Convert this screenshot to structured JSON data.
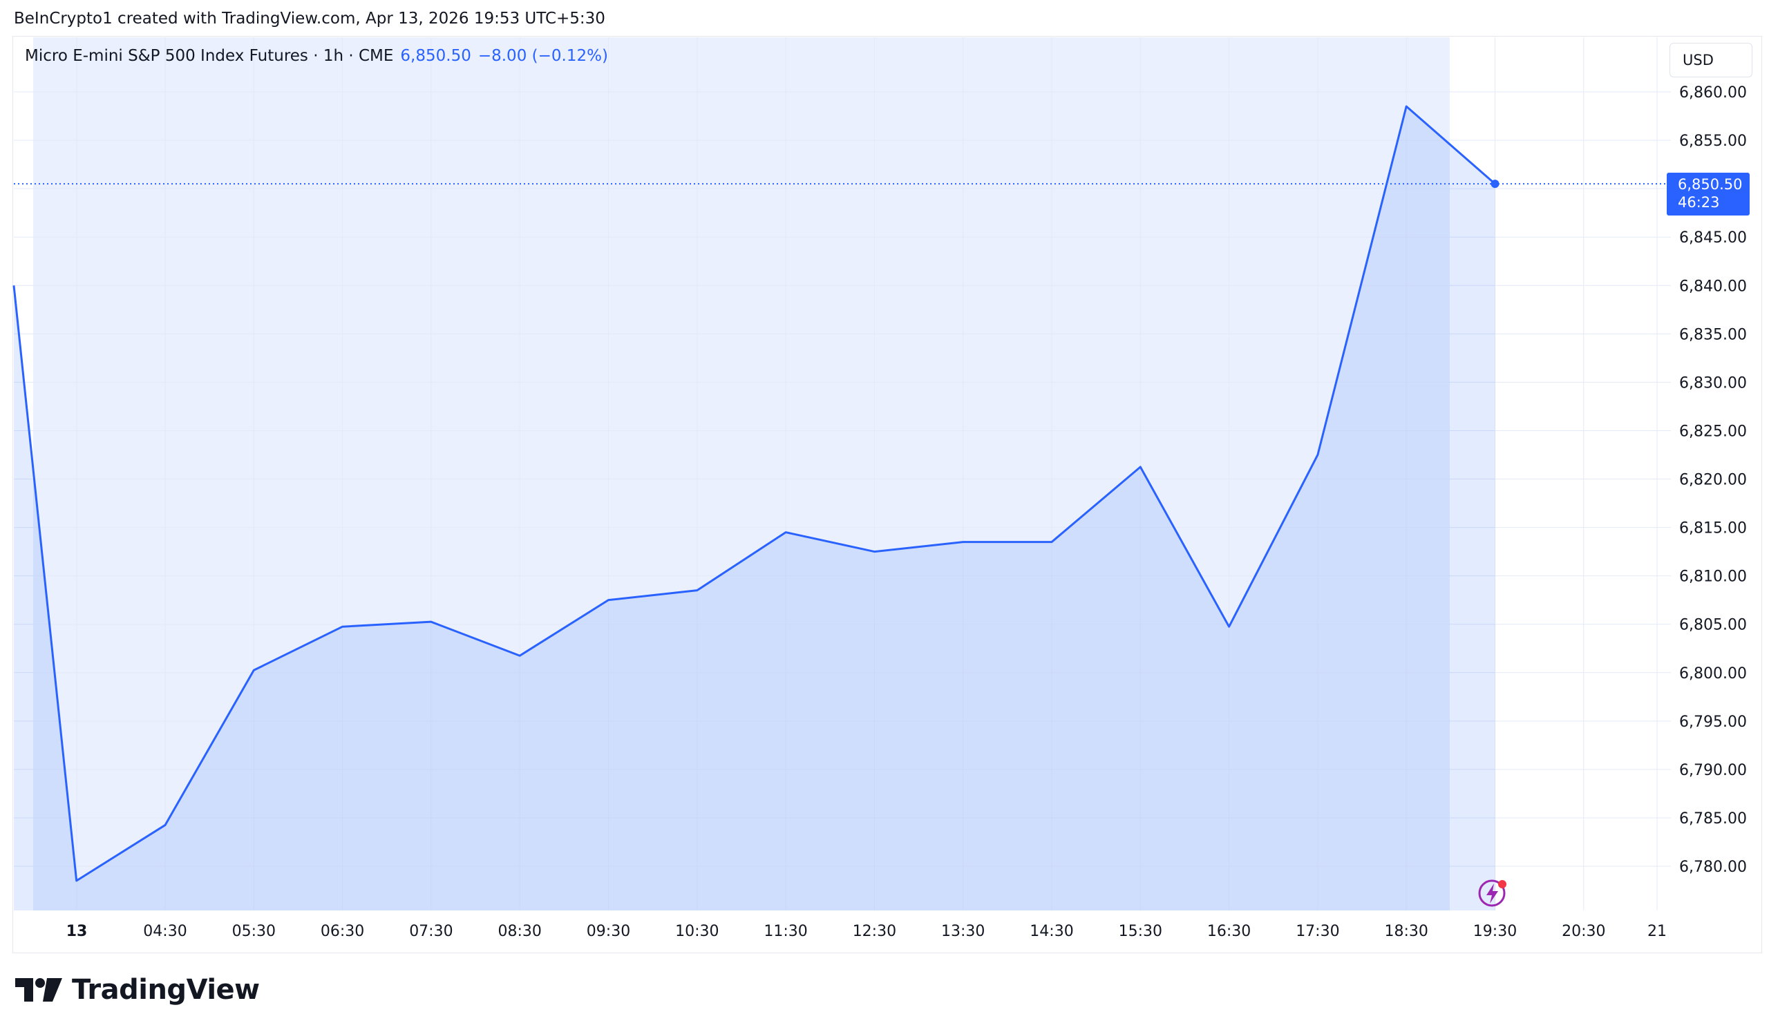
{
  "attribution": "BeInCrypto1 created with TradingView.com, Apr 13, 2026 19:53 UTC+5:30",
  "legend": {
    "symbol": "Micro E-mini S&P 500 Index Futures · 1h · CME",
    "price": "6,850.50",
    "change": "−8.00 (−0.12%)"
  },
  "currency_button": "USD",
  "price_tag": {
    "price": "6,850.50",
    "countdown": "46:23"
  },
  "brand": "TradingView",
  "colors": {
    "line": "#2962ff",
    "area": "#dbe4fd",
    "session_bg": "#eaf0fe",
    "grid": "#e3e9f7",
    "price_tag": "#2962ff",
    "alert_icon": "#9c27b0",
    "alert_dot": "#f23645"
  },
  "chart_data": {
    "type": "area",
    "title": "",
    "xlabel": "",
    "ylabel": "",
    "ylim": [
      6775,
      6864
    ],
    "x_ticks": [
      "13",
      "04:30",
      "05:30",
      "06:30",
      "07:30",
      "08:30",
      "09:30",
      "10:30",
      "11:30",
      "12:30",
      "13:30",
      "14:30",
      "15:30",
      "16:30",
      "17:30",
      "18:30",
      "19:30",
      "20:30",
      "21"
    ],
    "y_ticks": [
      6780,
      6785,
      6790,
      6795,
      6800,
      6805,
      6810,
      6815,
      6820,
      6825,
      6830,
      6835,
      6840,
      6845,
      6850,
      6855,
      6860
    ],
    "y_tick_labels": [
      "6,780.00",
      "6,785.00",
      "6,790.00",
      "6,795.00",
      "6,800.00",
      "6,805.00",
      "6,810.00",
      "6,815.00",
      "6,820.00",
      "6,825.00",
      "6,830.00",
      "6,835.00",
      "6,840.00",
      "6,845.00",
      "6,850.00",
      "6,855.00",
      "6,860.00"
    ],
    "series": [
      {
        "x": [
          "02:30",
          "03:30",
          "04:30",
          "05:30",
          "06:30",
          "07:30",
          "08:30",
          "09:30",
          "10:30",
          "11:30",
          "12:30",
          "13:30",
          "14:30",
          "15:30",
          "16:30",
          "17:30",
          "18:30",
          "19:30"
        ],
        "values": [
          6840.0,
          6778.5,
          6784.25,
          6800.25,
          6804.75,
          6805.25,
          6801.75,
          6807.5,
          6808.5,
          6814.5,
          6812.5,
          6813.5,
          6813.5,
          6821.25,
          6804.75,
          6822.5,
          6858.5,
          6850.5
        ]
      }
    ],
    "last_value": 6850.5,
    "grid": true,
    "y_axis_position": "right"
  }
}
